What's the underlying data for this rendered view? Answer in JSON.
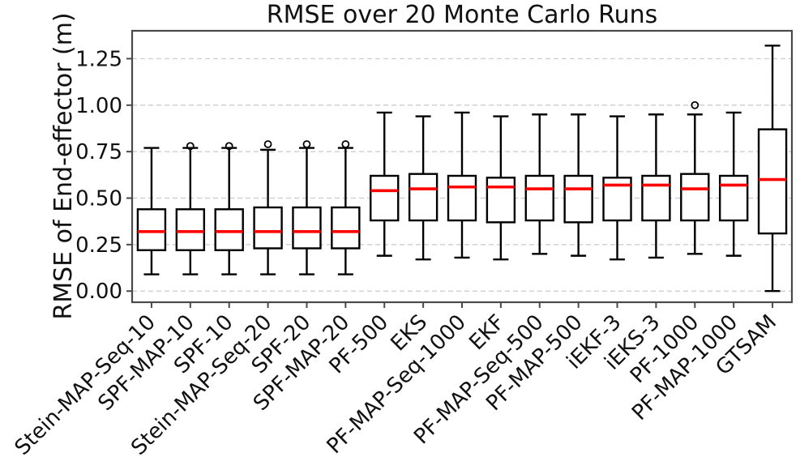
{
  "figure": {
    "title": "RMSE over 20 Monte Carlo Runs"
  },
  "chart_data": {
    "type": "box",
    "title": "RMSE over 20 Monte Carlo Runs",
    "xlabel": "",
    "ylabel": "RMSE of End-effector (m)",
    "ylim": [
      -0.06,
      1.4
    ],
    "yticks": [
      0.0,
      0.25,
      0.5,
      0.75,
      1.0,
      1.25
    ],
    "ytick_labels": [
      "0.00",
      "0.25",
      "0.50",
      "0.75",
      "1.00",
      "1.25"
    ],
    "x_tick_rotation": 45,
    "grid": "horizontal dashed",
    "legend": "none",
    "colors": {
      "median": "#ff0000",
      "box_edge": "#000000",
      "box_fill": "#ffffff",
      "grid": "#c9c9c9",
      "spine": "#4a4a4a",
      "background": "#ffffff"
    },
    "categories": [
      "Stein-MAP-Seq-10",
      "SPF-MAP-10",
      "SPF-10",
      "Stein-MAP-Seq-20",
      "SPF-20",
      "SPF-MAP-20",
      "PF-500",
      "EKS",
      "PF-MAP-Seq-1000",
      "EKF",
      "PF-MAP-Seq-500",
      "PF-MAP-500",
      "iEKF-3",
      "iEKS-3",
      "PF-1000",
      "PF-MAP-1000",
      "GTSAM"
    ],
    "boxes": [
      {
        "label": "Stein-MAP-Seq-10",
        "whislo": 0.09,
        "q1": 0.22,
        "med": 0.32,
        "q3": 0.44,
        "whishi": 0.77,
        "fliers": []
      },
      {
        "label": "SPF-MAP-10",
        "whislo": 0.09,
        "q1": 0.22,
        "med": 0.32,
        "q3": 0.44,
        "whishi": 0.77,
        "fliers": [
          0.78
        ]
      },
      {
        "label": "SPF-10",
        "whislo": 0.09,
        "q1": 0.22,
        "med": 0.32,
        "q3": 0.44,
        "whishi": 0.77,
        "fliers": [
          0.78
        ]
      },
      {
        "label": "Stein-MAP-Seq-20",
        "whislo": 0.09,
        "q1": 0.23,
        "med": 0.32,
        "q3": 0.45,
        "whishi": 0.76,
        "fliers": [
          0.79
        ]
      },
      {
        "label": "SPF-20",
        "whislo": 0.09,
        "q1": 0.23,
        "med": 0.32,
        "q3": 0.45,
        "whishi": 0.77,
        "fliers": [
          0.79
        ]
      },
      {
        "label": "SPF-MAP-20",
        "whislo": 0.09,
        "q1": 0.23,
        "med": 0.32,
        "q3": 0.45,
        "whishi": 0.77,
        "fliers": [
          0.79
        ]
      },
      {
        "label": "PF-500",
        "whislo": 0.19,
        "q1": 0.38,
        "med": 0.54,
        "q3": 0.62,
        "whishi": 0.96,
        "fliers": []
      },
      {
        "label": "EKS",
        "whislo": 0.17,
        "q1": 0.38,
        "med": 0.55,
        "q3": 0.63,
        "whishi": 0.94,
        "fliers": []
      },
      {
        "label": "PF-MAP-Seq-1000",
        "whislo": 0.18,
        "q1": 0.38,
        "med": 0.56,
        "q3": 0.62,
        "whishi": 0.96,
        "fliers": []
      },
      {
        "label": "EKF",
        "whislo": 0.17,
        "q1": 0.37,
        "med": 0.56,
        "q3": 0.61,
        "whishi": 0.94,
        "fliers": []
      },
      {
        "label": "PF-MAP-Seq-500",
        "whislo": 0.2,
        "q1": 0.38,
        "med": 0.55,
        "q3": 0.62,
        "whishi": 0.95,
        "fliers": []
      },
      {
        "label": "PF-MAP-500",
        "whislo": 0.19,
        "q1": 0.37,
        "med": 0.55,
        "q3": 0.62,
        "whishi": 0.95,
        "fliers": []
      },
      {
        "label": "iEKF-3",
        "whislo": 0.17,
        "q1": 0.38,
        "med": 0.57,
        "q3": 0.61,
        "whishi": 0.94,
        "fliers": []
      },
      {
        "label": "iEKS-3",
        "whislo": 0.18,
        "q1": 0.38,
        "med": 0.57,
        "q3": 0.62,
        "whishi": 0.95,
        "fliers": []
      },
      {
        "label": "PF-1000",
        "whislo": 0.2,
        "q1": 0.38,
        "med": 0.55,
        "q3": 0.63,
        "whishi": 0.95,
        "fliers": [
          1.0
        ]
      },
      {
        "label": "PF-MAP-1000",
        "whislo": 0.19,
        "q1": 0.38,
        "med": 0.57,
        "q3": 0.62,
        "whishi": 0.96,
        "fliers": []
      },
      {
        "label": "GTSAM",
        "whislo": 0.0,
        "q1": 0.31,
        "med": 0.6,
        "q3": 0.87,
        "whishi": 1.32,
        "fliers": []
      }
    ]
  }
}
